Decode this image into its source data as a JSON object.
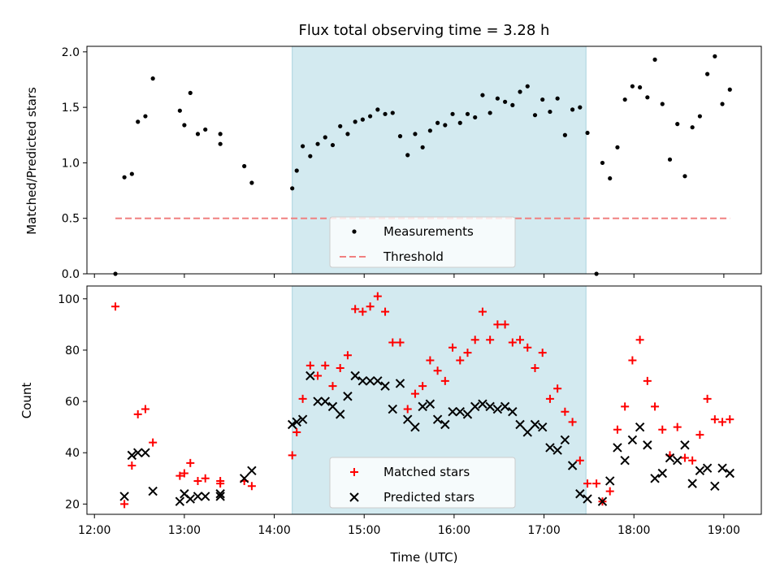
{
  "chart_data": [
    {
      "type": "scatter",
      "title": "Flux total observing time = 3.28 h",
      "xlabel": "",
      "ylabel": "Matched/Predicted stars",
      "ylim": [
        0,
        2.05
      ],
      "yticks": [
        "0.0",
        "0.5",
        "1.0",
        "1.5",
        "2.0"
      ],
      "shaded_x": [
        "14:12",
        "17:28"
      ],
      "shade_color": "#d3eaf0",
      "series": [
        {
          "name": "Measurements",
          "marker": "dot",
          "color": "#000000",
          "points": [
            [
              "12:14",
              0.0
            ],
            [
              "12:20",
              0.87
            ],
            [
              "12:25",
              0.9
            ],
            [
              "12:29",
              1.37
            ],
            [
              "12:34",
              1.42
            ],
            [
              "12:39",
              1.76
            ],
            [
              "12:57",
              1.47
            ],
            [
              "13:00",
              1.34
            ],
            [
              "13:04",
              1.63
            ],
            [
              "13:09",
              1.26
            ],
            [
              "13:14",
              1.3
            ],
            [
              "13:24",
              1.26
            ],
            [
              "13:24",
              1.17
            ],
            [
              "13:40",
              0.97
            ],
            [
              "13:45",
              0.82
            ],
            [
              "14:12",
              0.77
            ],
            [
              "14:15",
              0.93
            ],
            [
              "14:19",
              1.15
            ],
            [
              "14:24",
              1.06
            ],
            [
              "14:29",
              1.17
            ],
            [
              "14:34",
              1.23
            ],
            [
              "14:39",
              1.16
            ],
            [
              "14:44",
              1.33
            ],
            [
              "14:49",
              1.26
            ],
            [
              "14:54",
              1.37
            ],
            [
              "14:59",
              1.39
            ],
            [
              "15:04",
              1.42
            ],
            [
              "15:09",
              1.48
            ],
            [
              "15:14",
              1.44
            ],
            [
              "15:19",
              1.45
            ],
            [
              "15:24",
              1.24
            ],
            [
              "15:29",
              1.07
            ],
            [
              "15:34",
              1.26
            ],
            [
              "15:39",
              1.14
            ],
            [
              "15:44",
              1.29
            ],
            [
              "15:49",
              1.36
            ],
            [
              "15:54",
              1.34
            ],
            [
              "15:59",
              1.44
            ],
            [
              "16:04",
              1.36
            ],
            [
              "16:09",
              1.44
            ],
            [
              "16:14",
              1.41
            ],
            [
              "16:19",
              1.61
            ],
            [
              "16:24",
              1.45
            ],
            [
              "16:29",
              1.58
            ],
            [
              "16:34",
              1.55
            ],
            [
              "16:39",
              1.52
            ],
            [
              "16:44",
              1.64
            ],
            [
              "16:49",
              1.69
            ],
            [
              "16:54",
              1.43
            ],
            [
              "16:59",
              1.57
            ],
            [
              "17:04",
              1.46
            ],
            [
              "17:09",
              1.58
            ],
            [
              "17:14",
              1.25
            ],
            [
              "17:19",
              1.48
            ],
            [
              "17:24",
              1.5
            ],
            [
              "17:29",
              1.27
            ],
            [
              "17:35",
              0.0
            ],
            [
              "17:39",
              1.0
            ],
            [
              "17:44",
              0.86
            ],
            [
              "17:49",
              1.14
            ],
            [
              "17:54",
              1.57
            ],
            [
              "17:59",
              1.69
            ],
            [
              "18:04",
              1.68
            ],
            [
              "18:09",
              1.59
            ],
            [
              "18:14",
              1.93
            ],
            [
              "18:19",
              1.53
            ],
            [
              "18:24",
              1.03
            ],
            [
              "18:29",
              1.35
            ],
            [
              "18:34",
              0.88
            ],
            [
              "18:39",
              1.32
            ],
            [
              "18:44",
              1.42
            ],
            [
              "18:49",
              1.8
            ],
            [
              "18:54",
              1.96
            ],
            [
              "18:59",
              1.53
            ],
            [
              "19:04",
              1.66
            ]
          ]
        },
        {
          "name": "Threshold",
          "marker": "dashed-line",
          "color": "#f08080",
          "points": [
            [
              "12:14",
              0.5
            ],
            [
              "19:04",
              0.5
            ]
          ]
        }
      ],
      "legend": {
        "position": "bottom-center",
        "labels": [
          "Measurements",
          "Threshold"
        ]
      }
    },
    {
      "type": "scatter",
      "title": "",
      "xlabel": "Time (UTC)",
      "ylabel": "Count",
      "ylim": [
        16,
        105
      ],
      "yticks": [
        "20",
        "40",
        "60",
        "80",
        "100"
      ],
      "xlim": [
        "11:55",
        "19:25"
      ],
      "xticks": [
        "12:00",
        "13:00",
        "14:00",
        "15:00",
        "16:00",
        "17:00",
        "18:00",
        "19:00"
      ],
      "shaded_x": [
        "14:12",
        "17:28"
      ],
      "shade_color": "#d3eaf0",
      "series": [
        {
          "name": "Matched stars",
          "marker": "plus",
          "color": "#ff0000",
          "points": [
            [
              "12:14",
              97
            ],
            [
              "12:20",
              20
            ],
            [
              "12:25",
              35
            ],
            [
              "12:29",
              55
            ],
            [
              "12:34",
              57
            ],
            [
              "12:39",
              44
            ],
            [
              "12:57",
              31
            ],
            [
              "13:00",
              32
            ],
            [
              "13:04",
              36
            ],
            [
              "13:09",
              29
            ],
            [
              "13:14",
              30
            ],
            [
              "13:24",
              29
            ],
            [
              "13:24",
              28
            ],
            [
              "13:40",
              29
            ],
            [
              "13:45",
              27
            ],
            [
              "14:12",
              39
            ],
            [
              "14:15",
              48
            ],
            [
              "14:19",
              61
            ],
            [
              "14:24",
              74
            ],
            [
              "14:29",
              70
            ],
            [
              "14:34",
              74
            ],
            [
              "14:39",
              66
            ],
            [
              "14:44",
              73
            ],
            [
              "14:49",
              78
            ],
            [
              "14:54",
              96
            ],
            [
              "14:59",
              95
            ],
            [
              "15:04",
              97
            ],
            [
              "15:09",
              101
            ],
            [
              "15:14",
              95
            ],
            [
              "15:19",
              83
            ],
            [
              "15:24",
              83
            ],
            [
              "15:29",
              57
            ],
            [
              "15:34",
              63
            ],
            [
              "15:39",
              66
            ],
            [
              "15:44",
              76
            ],
            [
              "15:49",
              72
            ],
            [
              "15:54",
              68
            ],
            [
              "15:59",
              81
            ],
            [
              "16:04",
              76
            ],
            [
              "16:09",
              79
            ],
            [
              "16:14",
              84
            ],
            [
              "16:19",
              95
            ],
            [
              "16:24",
              84
            ],
            [
              "16:29",
              90
            ],
            [
              "16:34",
              90
            ],
            [
              "16:39",
              83
            ],
            [
              "16:44",
              84
            ],
            [
              "16:49",
              81
            ],
            [
              "16:54",
              73
            ],
            [
              "16:59",
              79
            ],
            [
              "17:04",
              61
            ],
            [
              "17:09",
              65
            ],
            [
              "17:14",
              56
            ],
            [
              "17:19",
              52
            ],
            [
              "17:24",
              37
            ],
            [
              "17:29",
              28
            ],
            [
              "17:35",
              28
            ],
            [
              "17:39",
              21
            ],
            [
              "17:44",
              25
            ],
            [
              "17:49",
              49
            ],
            [
              "17:54",
              58
            ],
            [
              "17:59",
              76
            ],
            [
              "18:04",
              84
            ],
            [
              "18:09",
              68
            ],
            [
              "18:14",
              58
            ],
            [
              "18:19",
              49
            ],
            [
              "18:24",
              39
            ],
            [
              "18:29",
              50
            ],
            [
              "18:34",
              38
            ],
            [
              "18:39",
              37
            ],
            [
              "18:44",
              47
            ],
            [
              "18:49",
              61
            ],
            [
              "18:54",
              53
            ],
            [
              "18:59",
              52
            ],
            [
              "19:04",
              53
            ]
          ]
        },
        {
          "name": "Predicted stars",
          "marker": "x",
          "color": "#000000",
          "points": [
            [
              "12:20",
              23
            ],
            [
              "12:25",
              39
            ],
            [
              "12:29",
              40
            ],
            [
              "12:34",
              40
            ],
            [
              "12:39",
              25
            ],
            [
              "12:57",
              21
            ],
            [
              "13:00",
              24
            ],
            [
              "13:04",
              22
            ],
            [
              "13:09",
              23
            ],
            [
              "13:14",
              23
            ],
            [
              "13:24",
              24
            ],
            [
              "13:24",
              23
            ],
            [
              "13:40",
              30
            ],
            [
              "13:45",
              33
            ],
            [
              "14:12",
              51
            ],
            [
              "14:15",
              52
            ],
            [
              "14:19",
              53
            ],
            [
              "14:24",
              70
            ],
            [
              "14:29",
              60
            ],
            [
              "14:34",
              60
            ],
            [
              "14:39",
              58
            ],
            [
              "14:44",
              55
            ],
            [
              "14:49",
              62
            ],
            [
              "14:54",
              70
            ],
            [
              "14:59",
              68
            ],
            [
              "15:04",
              68
            ],
            [
              "15:09",
              68
            ],
            [
              "15:14",
              66
            ],
            [
              "15:19",
              57
            ],
            [
              "15:24",
              67
            ],
            [
              "15:29",
              53
            ],
            [
              "15:34",
              50
            ],
            [
              "15:39",
              58
            ],
            [
              "15:44",
              59
            ],
            [
              "15:49",
              53
            ],
            [
              "15:54",
              51
            ],
            [
              "15:59",
              56
            ],
            [
              "16:04",
              56
            ],
            [
              "16:09",
              55
            ],
            [
              "16:14",
              58
            ],
            [
              "16:19",
              59
            ],
            [
              "16:24",
              58
            ],
            [
              "16:29",
              57
            ],
            [
              "16:34",
              58
            ],
            [
              "16:39",
              56
            ],
            [
              "16:44",
              51
            ],
            [
              "16:49",
              48
            ],
            [
              "16:54",
              51
            ],
            [
              "16:59",
              50
            ],
            [
              "17:04",
              42
            ],
            [
              "17:09",
              41
            ],
            [
              "17:14",
              45
            ],
            [
              "17:19",
              35
            ],
            [
              "17:24",
              24
            ],
            [
              "17:29",
              22
            ],
            [
              "17:39",
              21
            ],
            [
              "17:44",
              29
            ],
            [
              "17:49",
              42
            ],
            [
              "17:54",
              37
            ],
            [
              "17:59",
              45
            ],
            [
              "18:04",
              50
            ],
            [
              "18:09",
              43
            ],
            [
              "18:14",
              30
            ],
            [
              "18:19",
              32
            ],
            [
              "18:24",
              38
            ],
            [
              "18:29",
              37
            ],
            [
              "18:34",
              43
            ],
            [
              "18:39",
              28
            ],
            [
              "18:44",
              33
            ],
            [
              "18:49",
              34
            ],
            [
              "18:54",
              27
            ],
            [
              "18:59",
              34
            ],
            [
              "19:04",
              32
            ]
          ]
        }
      ],
      "legend": {
        "position": "bottom-center",
        "labels": [
          "Matched stars",
          "Predicted stars"
        ]
      }
    }
  ]
}
